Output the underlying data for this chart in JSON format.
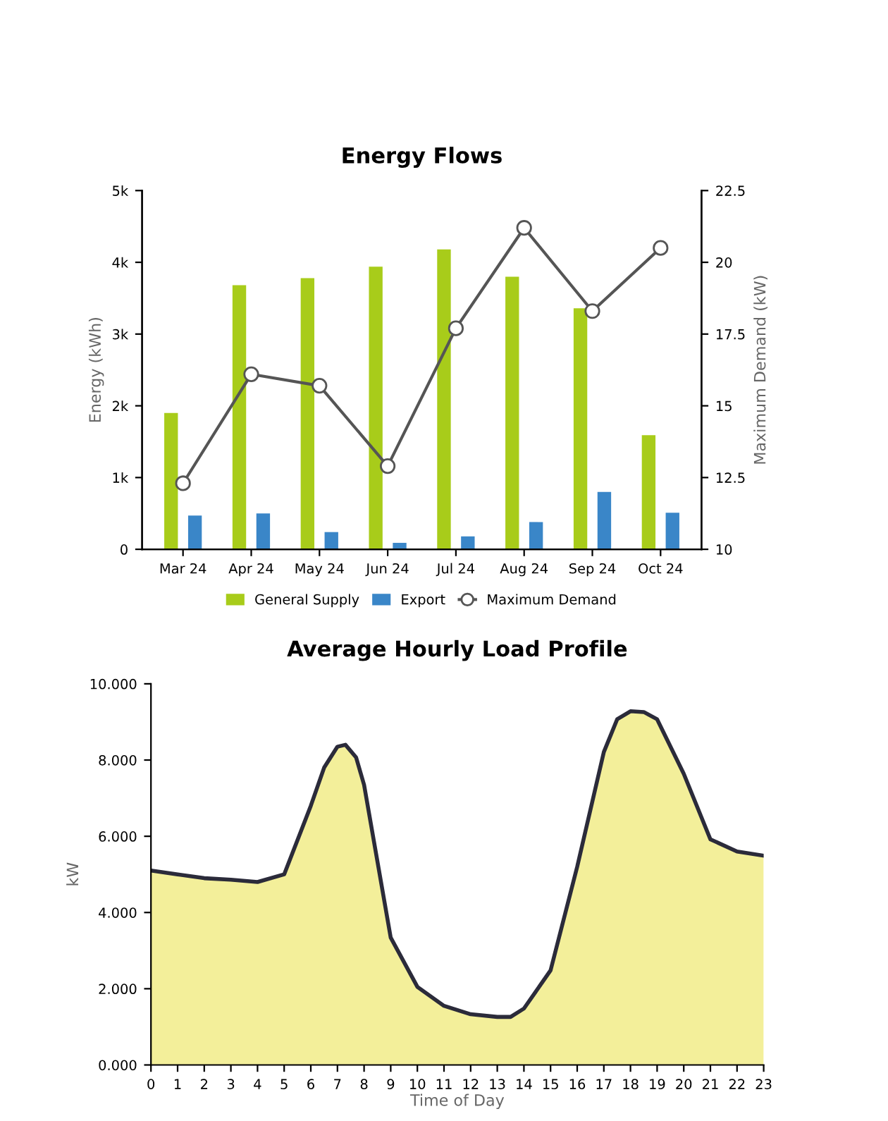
{
  "chart_data": [
    {
      "type": "bar",
      "title": "Energy Flows",
      "ylabel": "Energy (kWh)",
      "y2label": "Maximum Demand (kW)",
      "categories": [
        "Mar 24",
        "Apr 24",
        "May 24",
        "Jun 24",
        "Jul 24",
        "Aug 24",
        "Sep 24",
        "Oct 24"
      ],
      "series": [
        {
          "name": "General Supply",
          "color": "#a8cc1a",
          "values": [
            1.9,
            3.68,
            3.78,
            3.94,
            4.18,
            3.8,
            3.36,
            1.59
          ]
        },
        {
          "name": "Export",
          "color": "#3a86c8",
          "values": [
            0.47,
            0.5,
            0.24,
            0.09,
            0.18,
            0.38,
            0.8,
            0.51
          ]
        },
        {
          "name": "Maximum Demand",
          "type": "line",
          "axis": "y2",
          "marker": "circle",
          "color": "#555555",
          "values": [
            12.3,
            16.1,
            15.7,
            12.9,
            17.7,
            21.2,
            18.3,
            20.5
          ]
        }
      ],
      "ylim": [
        0,
        5
      ],
      "yticks": [
        {
          "value": 0,
          "label": "0"
        },
        {
          "value": 1,
          "label": "1k"
        },
        {
          "value": 2,
          "label": "2k"
        },
        {
          "value": 3,
          "label": "3k"
        },
        {
          "value": 4,
          "label": "4k"
        },
        {
          "value": 5,
          "label": "5k"
        }
      ],
      "y2lim": [
        10,
        22.5
      ],
      "y2ticks": [
        10,
        12.5,
        15,
        17.5,
        20,
        22.5
      ],
      "legend": "bottom",
      "grid": false
    },
    {
      "type": "area",
      "title": "Average Hourly Load Profile",
      "xlabel": "Time of Day",
      "ylabel": "kW",
      "series": [
        {
          "color": "#f3ef9a",
          "x": [
            0,
            1,
            2,
            3,
            4,
            5,
            6,
            6.5,
            7,
            7.3,
            7.7,
            8,
            9,
            10,
            11,
            12,
            13,
            13.5,
            14,
            15,
            16,
            17,
            17.5,
            18,
            18.5,
            19,
            20,
            21,
            22,
            23
          ],
          "values": [
            5.1,
            5.0,
            4.9,
            4.86,
            4.8,
            5.0,
            6.8,
            7.8,
            8.35,
            8.4,
            8.07,
            7.35,
            3.34,
            2.05,
            1.55,
            1.33,
            1.26,
            1.26,
            1.48,
            2.48,
            5.2,
            8.21,
            9.07,
            9.28,
            9.26,
            9.07,
            7.64,
            5.92,
            5.6,
            5.49
          ]
        }
      ],
      "xlim": [
        0,
        23
      ],
      "xticks": [
        0,
        1,
        2,
        3,
        4,
        5,
        6,
        7,
        8,
        9,
        10,
        11,
        12,
        13,
        14,
        15,
        16,
        17,
        18,
        19,
        20,
        21,
        22,
        23
      ],
      "ylim": [
        0,
        10
      ],
      "yticks": [
        {
          "value": 0,
          "label": "0.000"
        },
        {
          "value": 2,
          "label": "2.000"
        },
        {
          "value": 4,
          "label": "4.000"
        },
        {
          "value": 6,
          "label": "6.000"
        },
        {
          "value": 8,
          "label": "8.000"
        },
        {
          "value": 10,
          "label": "10.000"
        }
      ],
      "grid": false,
      "legend": false
    }
  ]
}
